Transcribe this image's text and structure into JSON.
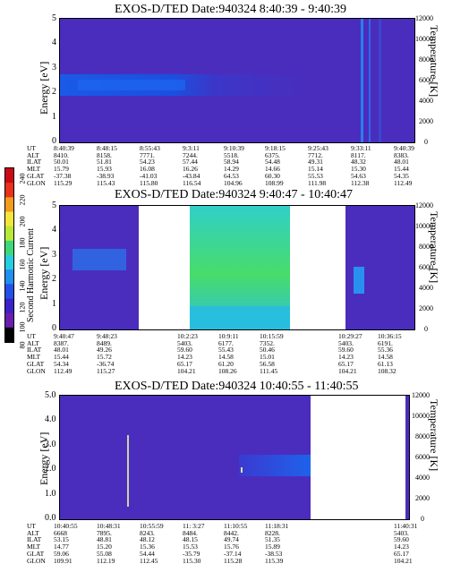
{
  "colors": {
    "background": "#4a2dbd",
    "band": "#1a4fe0",
    "scale": [
      "#000000",
      "#6a1eb0",
      "#3a22c8",
      "#2450e8",
      "#1f8ff0",
      "#27cde0",
      "#3ed87a",
      "#b8e83a",
      "#f4e63a",
      "#f49a1e",
      "#e8321a",
      "#cc0a14"
    ]
  },
  "colorbar": {
    "label": "Second Harmonic Current",
    "ticks": [
      "240",
      "220",
      "200",
      "180",
      "160",
      "140",
      "120",
      "100",
      "80"
    ]
  },
  "row_labels": [
    "UT",
    "ALT",
    "ILAT",
    "MLT",
    "GLAT",
    "GLON"
  ],
  "panels": [
    {
      "title": "EXOS-D/TED  Date:940324  8:40:39 - 9:40:39",
      "ylabel": "Energy [eV]",
      "y2label": "Temperature [K]",
      "yticks": [
        "5",
        "4",
        "3",
        "2",
        "1",
        "0"
      ],
      "y2ticks": [
        "12000",
        "10000",
        "8000",
        "6000",
        "4000",
        "2000",
        "0"
      ],
      "columns": [
        [
          "8:40:39",
          "8410.",
          "50.01",
          "15.79",
          "-37.38",
          "115.29"
        ],
        [
          "8:48:15",
          "8158.",
          "51.81",
          "15.93",
          "-38.93",
          "115.43"
        ],
        [
          "8:55:43",
          "7771.",
          "54.23",
          "16.08",
          "-41.03",
          "115.80"
        ],
        [
          "9:3:11",
          "7244.",
          "57.44",
          "16.26",
          "-43.84",
          "116.54"
        ],
        [
          "9:10:39",
          "5518.",
          "58.94",
          "14.29",
          "64.53",
          "104.96"
        ],
        [
          "9:18:15",
          "6375.",
          "54.48",
          "14.66",
          "60.30",
          "108.99"
        ],
        [
          "9:25:43",
          "7712.",
          "49.31",
          "15.14",
          "55.53",
          "111.98"
        ],
        [
          "9:33:11",
          "8117.",
          "48.32",
          "15.30",
          "54.63",
          "112.38"
        ],
        [
          "9:40:39",
          "8383.",
          "48.01",
          "15.44",
          "54.35",
          "112.49"
        ]
      ]
    },
    {
      "title": "EXOS-D/TED   Date:940324   9:40:47 - 10:40:47",
      "ylabel": "Energy [eV]",
      "y2label": "Temperature [K]",
      "yticks": [
        "5",
        "4",
        "3",
        "2",
        "1",
        "0"
      ],
      "y2ticks": [
        "12000",
        "10000",
        "8000",
        "6000",
        "4000",
        "2000",
        "0"
      ],
      "columns": [
        [
          "9:40:47",
          "8387.",
          "48.01",
          "15.44",
          "54.34",
          "112.49"
        ],
        [
          "9:48:23",
          "8489.",
          "49.26",
          "15.72",
          "-36.74",
          "115.27"
        ],
        [
          "10:2:23",
          "5403.",
          "59.60",
          "14.23",
          "65.17",
          "104.21"
        ],
        [
          "10:9:11",
          "6177.",
          "55.43",
          "14.58",
          "61.20",
          "108.26"
        ],
        [
          "10:15:59",
          "7352.",
          "50.46",
          "15.01",
          "56.58",
          "111.45"
        ],
        [
          "10:29:27",
          "5403.",
          "59.60",
          "14.23",
          "65.17",
          "104.21"
        ],
        [
          "10:36:15",
          "6191.",
          "55.36",
          "14.58",
          "61.13",
          "108.32"
        ]
      ]
    },
    {
      "title": "EXOS-D/TED   Date:940324   10:40:55 - 11:40:55",
      "ylabel": "Energy [eV]",
      "y2label": "Temperature [K]",
      "yticks": [
        "5.0",
        "4.0",
        "3.0",
        "2.0",
        "1.0",
        "0.0"
      ],
      "y2ticks": [
        "12000",
        "10000",
        "8000",
        "6000",
        "4000",
        "2000",
        "0"
      ],
      "columns": [
        [
          "10:40:55",
          "6668",
          "53.15",
          "14.77",
          "59.06",
          "109.91"
        ],
        [
          "10:48:31",
          "7895.",
          "48.81",
          "15.20",
          "55.08",
          "112.19"
        ],
        [
          "10:55:59",
          "8243.",
          "48.12",
          "15.36",
          "54.44",
          "112.45"
        ],
        [
          "11: 3:27",
          "8484.",
          "48.15",
          "15.53",
          "-35.79",
          "115.30"
        ],
        [
          "11:10:55",
          "8442.",
          "49.74",
          "15.76",
          "-37.14",
          "115.28"
        ],
        [
          "11:18:31",
          "8228.",
          "51.35",
          "15.89",
          "-38.53",
          "115.39"
        ],
        [
          "11:40:31",
          "5403.",
          "59.60",
          "14.23",
          "65.17",
          "104.21"
        ]
      ]
    }
  ],
  "chart_data": [
    {
      "type": "heatmap",
      "title": "EXOS-D/TED  Date:940324  8:40:39 - 9:40:39",
      "xlabel": "UT",
      "ylabel": "Energy [eV]",
      "y2label": "Temperature [K]",
      "ylim": [
        0,
        5
      ],
      "y2lim": [
        0,
        12000
      ],
      "x": [
        "8:40:39",
        "8:48:15",
        "8:55:43",
        "9:3:11",
        "9:10:39",
        "9:18:15",
        "9:25:43",
        "9:33:11",
        "9:40:39"
      ],
      "features": [
        {
          "name": "band",
          "x_from": "8:40:39",
          "x_to": "9:10:39",
          "energy": [
            2.0,
            2.7
          ]
        },
        {
          "name": "spike",
          "x": "9:33:11",
          "energy": [
            0,
            5
          ]
        }
      ]
    },
    {
      "type": "heatmap",
      "title": "EXOS-D/TED   Date:940324   9:40:47 - 10:40:47",
      "xlabel": "UT",
      "ylabel": "Energy [eV]",
      "y2label": "Temperature [K]",
      "ylim": [
        0,
        5
      ],
      "y2lim": [
        0,
        12000
      ],
      "x": [
        "9:40:47",
        "9:48:23",
        "10:2:23",
        "10:9:11",
        "10:15:59",
        "10:29:27",
        "10:36:15"
      ],
      "data_segments": [
        [
          "9:40:47",
          "9:51:00"
        ],
        [
          "10:1:00",
          "10:17:00"
        ],
        [
          "10:28:00",
          "10:40:47"
        ]
      ]
    },
    {
      "type": "heatmap",
      "title": "EXOS-D/TED   Date:940324   10:40:55 - 11:40:55",
      "xlabel": "UT",
      "ylabel": "Energy [eV]",
      "y2label": "Temperature [K]",
      "ylim": [
        0,
        5
      ],
      "y2lim": [
        0,
        12000
      ],
      "x": [
        "10:40:55",
        "10:48:31",
        "10:55:59",
        "11: 3:27",
        "11:10:55",
        "11:18:31",
        "11:40:31"
      ],
      "data_segments": [
        [
          "10:40:55",
          "11:23:00"
        ]
      ]
    }
  ]
}
